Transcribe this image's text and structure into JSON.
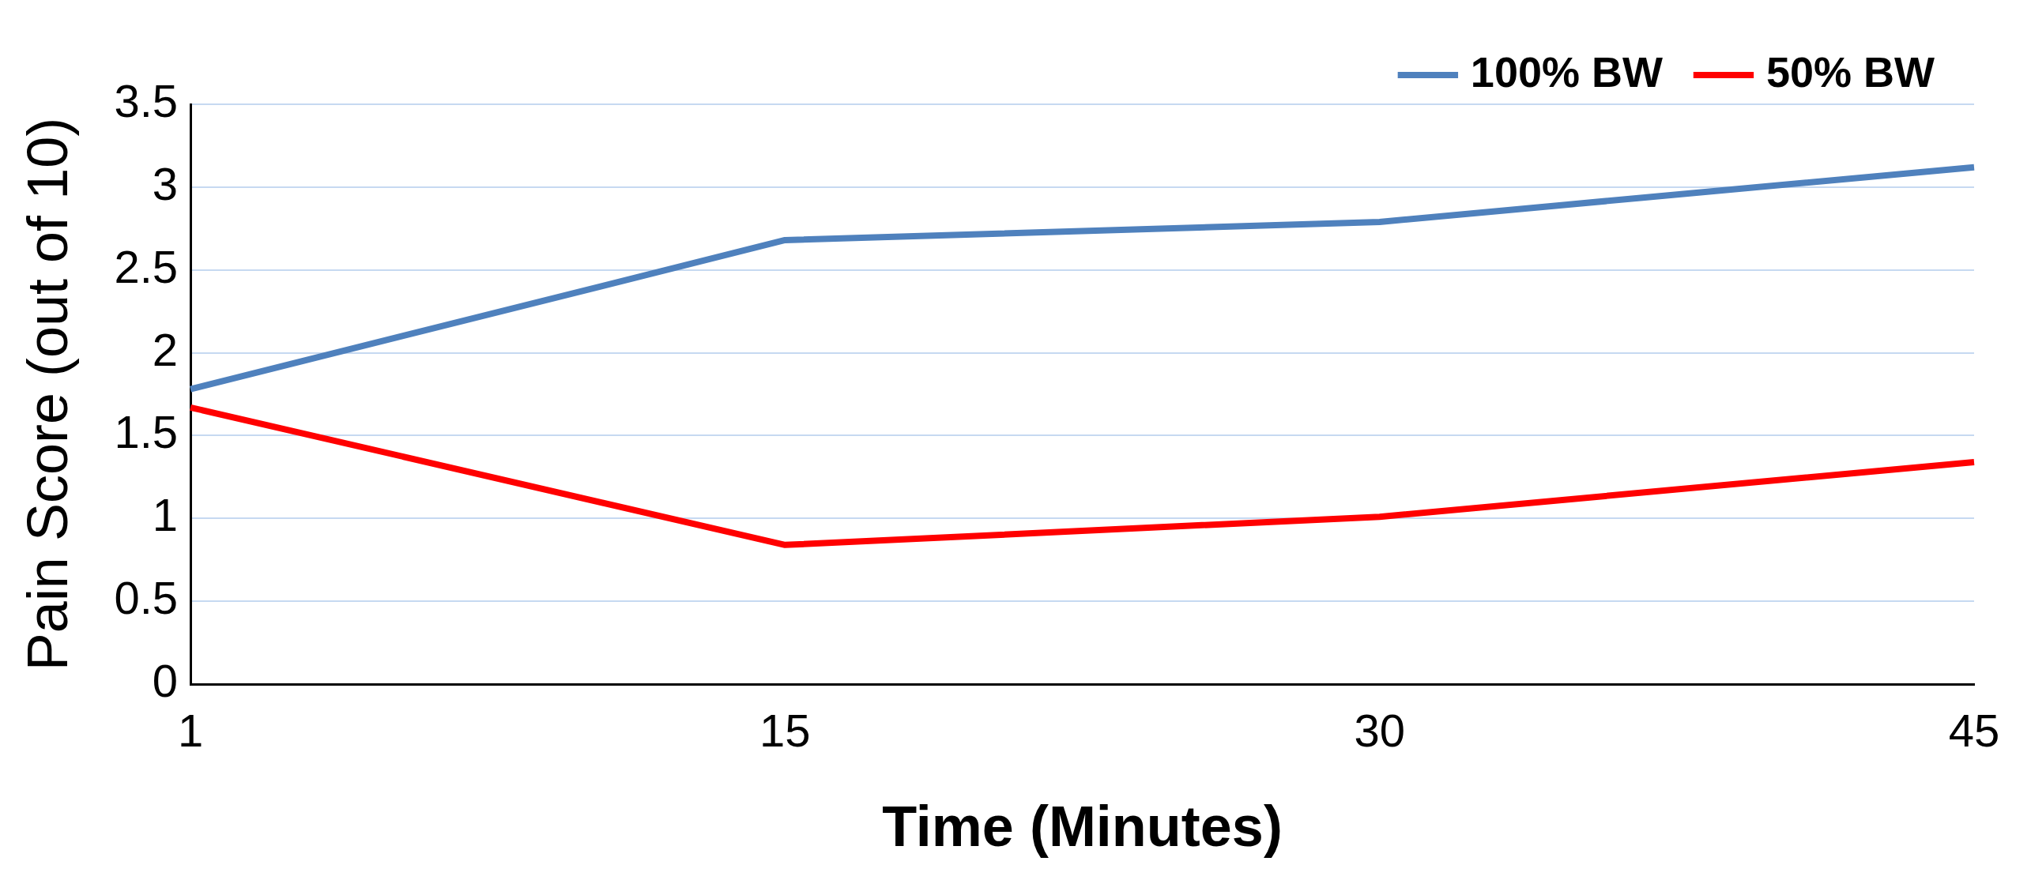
{
  "chart_data": {
    "type": "line",
    "xlabel": "Time (Minutes)",
    "ylabel": "Pain Score (out of 10)",
    "categories": [
      "1",
      "15",
      "30",
      "45"
    ],
    "series": [
      {
        "name": "100% BW",
        "color": "#4f81bd",
        "values": [
          1.78,
          2.68,
          2.79,
          3.12
        ]
      },
      {
        "name": "50% BW",
        "color": "#ff0000",
        "values": [
          1.67,
          0.84,
          1.01,
          1.34
        ]
      }
    ],
    "ylim": [
      0,
      3.5
    ],
    "yticks": [
      0,
      0.5,
      1,
      1.5,
      2,
      2.5,
      3,
      3.5
    ],
    "grid": "y",
    "legend": "top right",
    "marker": "none",
    "line_style": "solid"
  }
}
